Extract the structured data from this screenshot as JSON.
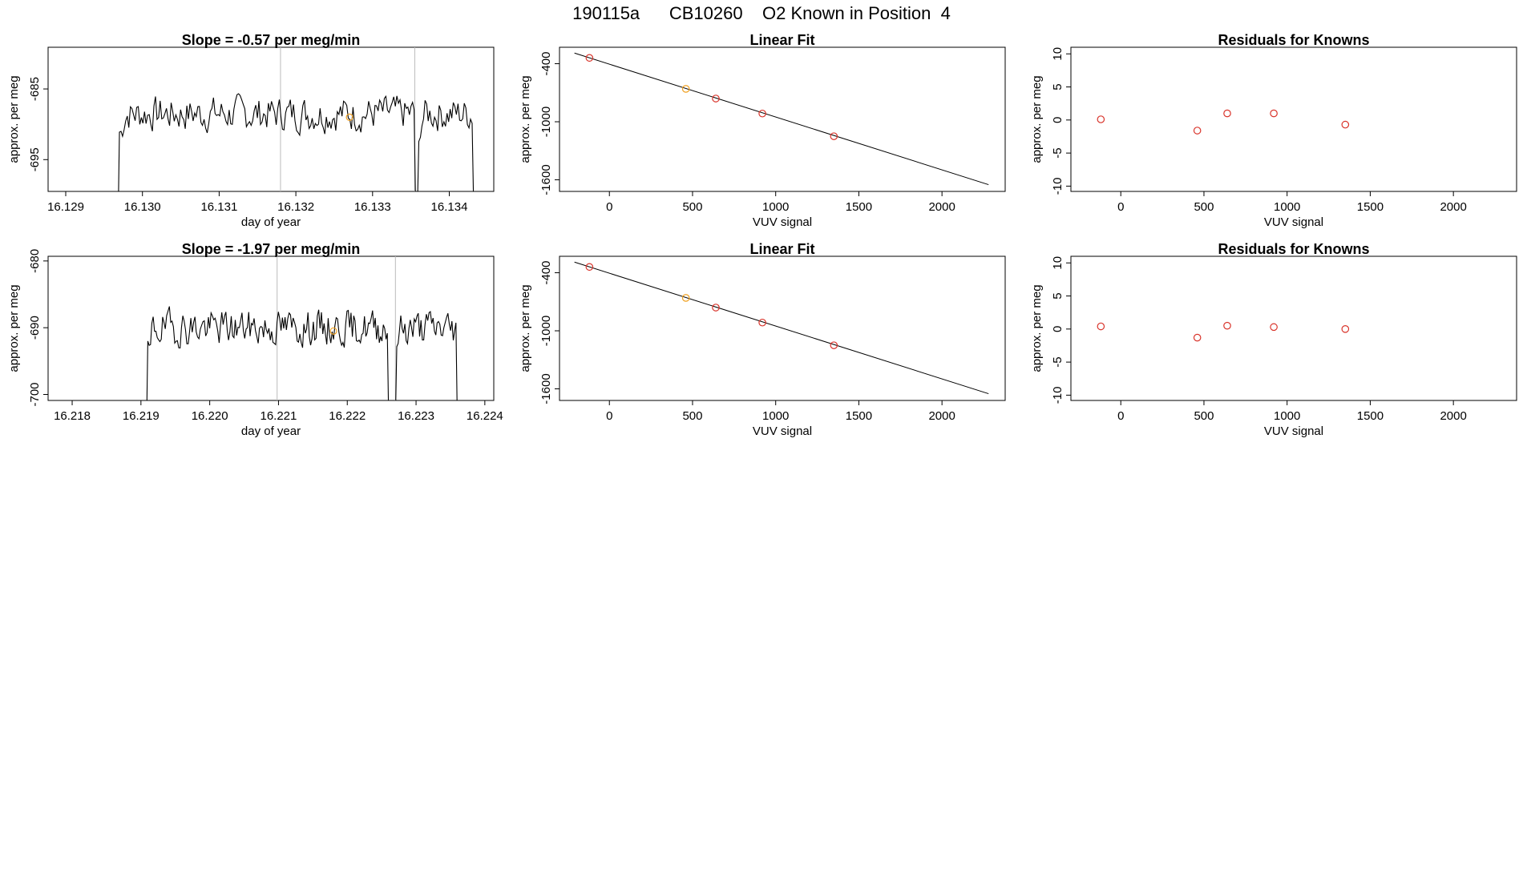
{
  "page_title": "190115a      CB10260    O2 Known in Position  4",
  "colors": {
    "frame": "#000000",
    "line": "#000000",
    "marker_known": "#d9342b",
    "marker_highlight": "#f0a020",
    "vline": "#bbbbbb"
  },
  "chart_data": [
    {
      "type": "line",
      "title": "Slope =  -0.57  per meg/min",
      "xlabel": "day of year",
      "ylabel": "approx. per meg",
      "xlim": [
        16.12877,
        16.13458
      ],
      "ylim": [
        -699.5,
        -679.1
      ],
      "xticks": [
        "16.129",
        "16.130",
        "16.131",
        "16.132",
        "16.133",
        "16.134"
      ],
      "yticks": [
        "-685",
        "-695"
      ],
      "vlines": [
        16.1318,
        16.13355
      ],
      "trace": {
        "start": 16.1297,
        "end": 16.1344,
        "center": -688.5,
        "amp": 2.6,
        "seed": 7,
        "dips": [
          [
            16.13355,
            16.1336
          ]
        ],
        "lead_in": -699.5,
        "tail_drop": 16.1343
      },
      "highlight_point": {
        "x": 16.1327,
        "y": -689.0
      }
    },
    {
      "type": "scatter",
      "title": "Linear Fit",
      "xlabel": "VUV signal",
      "ylabel": "approx. per meg",
      "xlim": [
        -300,
        2380
      ],
      "ylim": [
        -1720,
        -230
      ],
      "xticks": [
        "0",
        "500",
        "1000",
        "1500",
        "2000"
      ],
      "yticks": [
        "-400",
        "-1000",
        "-1600"
      ],
      "fit_line": {
        "x": [
          -210,
          2280
        ],
        "y": [
          -290,
          -1650
        ]
      },
      "points": [
        {
          "x": -120,
          "y": -340,
          "highlight": false
        },
        {
          "x": 460,
          "y": -660,
          "highlight": true
        },
        {
          "x": 640,
          "y": -760,
          "highlight": false
        },
        {
          "x": 920,
          "y": -915,
          "highlight": false
        },
        {
          "x": 1350,
          "y": -1150,
          "highlight": false
        }
      ]
    },
    {
      "type": "scatter",
      "title": "Residuals for Knowns",
      "xlabel": "VUV signal",
      "ylabel": "approx. per meg",
      "xlim": [
        -300,
        2380
      ],
      "ylim": [
        -10.8,
        11
      ],
      "xticks": [
        "0",
        "500",
        "1000",
        "1500",
        "2000"
      ],
      "yticks": [
        "10",
        "5",
        "0",
        "-5",
        "-10"
      ],
      "points": [
        {
          "x": -120,
          "y": 0.1
        },
        {
          "x": 460,
          "y": -1.6
        },
        {
          "x": 640,
          "y": 1.0
        },
        {
          "x": 920,
          "y": 1.0
        },
        {
          "x": 1350,
          "y": -0.7
        }
      ]
    },
    {
      "type": "line",
      "title": "Slope =  -1.97  per meg/min",
      "xlabel": "day of year",
      "ylabel": "approx. per meg",
      "xlim": [
        16.21765,
        16.22413
      ],
      "ylim": [
        -700.9,
        -679.3
      ],
      "xticks": [
        "16.218",
        "16.219",
        "16.220",
        "16.221",
        "16.222",
        "16.223",
        "16.224"
      ],
      "yticks": [
        "-680",
        "-690",
        "-700"
      ],
      "vlines": [
        16.22098,
        16.2227
      ],
      "trace": {
        "start": 16.2191,
        "end": 16.2236,
        "center": -690.0,
        "amp": 2.8,
        "seed": 19,
        "dips": [
          [
            16.2226,
            16.2227
          ]
        ],
        "lead_in": -700.9,
        "tail_drop": 16.2236
      },
      "highlight_point": {
        "x": 16.2218,
        "y": -690.5
      }
    },
    {
      "type": "scatter",
      "title": "Linear Fit",
      "xlabel": "VUV signal",
      "ylabel": "approx. per meg",
      "xlim": [
        -300,
        2380
      ],
      "ylim": [
        -1720,
        -230
      ],
      "xticks": [
        "0",
        "500",
        "1000",
        "1500",
        "2000"
      ],
      "yticks": [
        "-400",
        "-1000",
        "-1600"
      ],
      "fit_line": {
        "x": [
          -210,
          2280
        ],
        "y": [
          -290,
          -1650
        ]
      },
      "points": [
        {
          "x": -120,
          "y": -340,
          "highlight": false
        },
        {
          "x": 460,
          "y": -660,
          "highlight": true
        },
        {
          "x": 640,
          "y": -760,
          "highlight": false
        },
        {
          "x": 920,
          "y": -915,
          "highlight": false
        },
        {
          "x": 1350,
          "y": -1150,
          "highlight": false
        }
      ]
    },
    {
      "type": "scatter",
      "title": "Residuals for Knowns",
      "xlabel": "VUV signal",
      "ylabel": "approx. per meg",
      "xlim": [
        -300,
        2380
      ],
      "ylim": [
        -10.8,
        11
      ],
      "xticks": [
        "0",
        "500",
        "1000",
        "1500",
        "2000"
      ],
      "yticks": [
        "10",
        "5",
        "0",
        "-5",
        "-10"
      ],
      "points": [
        {
          "x": -120,
          "y": 0.4
        },
        {
          "x": 460,
          "y": -1.3
        },
        {
          "x": 640,
          "y": 0.5
        },
        {
          "x": 920,
          "y": 0.3
        },
        {
          "x": 1350,
          "y": 0.0
        }
      ]
    }
  ]
}
